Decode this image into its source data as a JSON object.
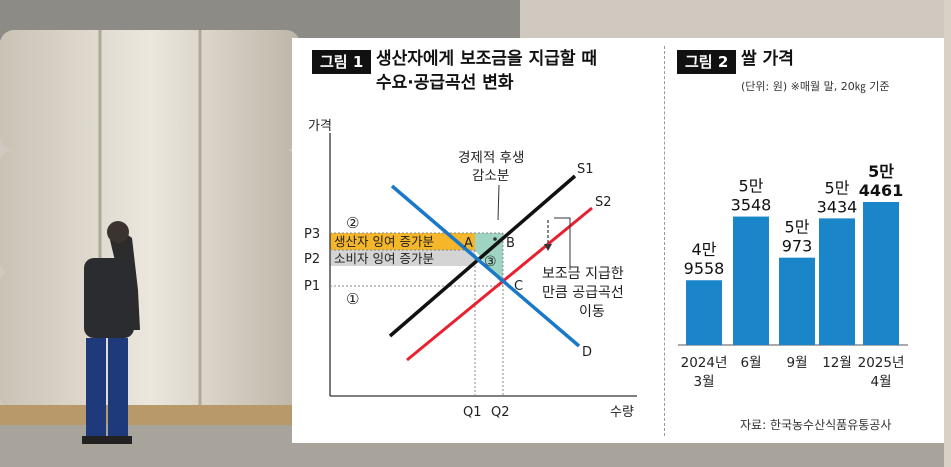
{
  "figure1": {
    "tag": "그림 1",
    "title_line1": "생산자에게 보조금을 지급할 때",
    "title_line2": "수요·공급곡선 변화",
    "y_axis_label": "가격",
    "x_axis_label": "수량",
    "price_labels": [
      "P3",
      "P2",
      "P1"
    ],
    "quantity_labels": [
      "Q1",
      "Q2"
    ],
    "curve_labels": {
      "s1": "S1",
      "s2": "S2",
      "d": "D"
    },
    "point_labels": {
      "a": "A",
      "b": "B",
      "c": "C"
    },
    "region_labels": {
      "r1": "①",
      "r2": "②",
      "r3": "③"
    },
    "producer_surplus_label": "생산자 잉여 증가분",
    "consumer_surplus_label": "소비자 잉여 증가분",
    "deadweight_label_line1": "경제적 후생",
    "deadweight_label_line2": "감소분",
    "shift_label_line1": "보조금 지급한",
    "shift_label_line2": "만큼 공급곡선",
    "shift_label_line3": "이동",
    "colors": {
      "s1": "#111111",
      "s2": "#e8202f",
      "d": "#1a78c8",
      "producer": "#f5b62a",
      "consumer": "#d4d4d4",
      "deadweight": "#9fd4c2"
    }
  },
  "figure2": {
    "tag": "그림 2",
    "title": "쌀 가격",
    "unit_note": "(단위: 원)  ※매월 말, 20㎏ 기준",
    "source": "자료: 한국농수산식품유통공사",
    "bar_color": "#1a85c8"
  },
  "chart_data": {
    "type": "bar",
    "title": "쌀 가격",
    "unit": "원",
    "categories": [
      "2024년 3월",
      "6월",
      "9월",
      "12월",
      "2025년 4월"
    ],
    "category_lines": [
      [
        "2024년",
        "3월"
      ],
      [
        "6월"
      ],
      [
        "9월"
      ],
      [
        "12월"
      ],
      [
        "2025년",
        "4월"
      ]
    ],
    "values": [
      49558,
      53548,
      50973,
      53434,
      54461
    ],
    "value_labels": [
      [
        "4만",
        "9558"
      ],
      [
        "5만",
        "3548"
      ],
      [
        "5만",
        "973"
      ],
      [
        "5만",
        "3434"
      ],
      [
        "5만",
        "4461"
      ]
    ],
    "highlight_last": true
  }
}
